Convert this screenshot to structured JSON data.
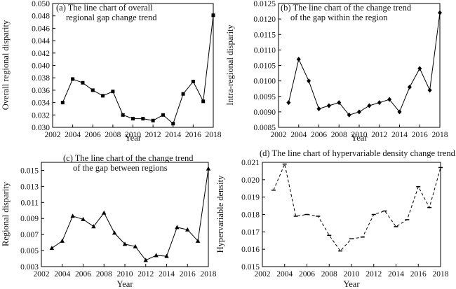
{
  "chart_data": [
    {
      "type": "line",
      "title_lines": [
        "(a) The line chart of overall",
        "regional gap change trend"
      ],
      "xlabel": "Year",
      "ylabel": "Overall regional disparity",
      "xlim": [
        2002,
        2018
      ],
      "xticks": [
        "2002",
        "2004",
        "2006",
        "2008",
        "2010",
        "2012",
        "2014",
        "2016",
        "2018"
      ],
      "ylim": [
        0.03,
        0.05
      ],
      "yticks": [
        "0.030",
        "0.032",
        "0.034",
        "0.036",
        "0.038",
        "0.040",
        "0.042",
        "0.044",
        "0.046",
        "0.048",
        "0.050"
      ],
      "marker": "square",
      "dashed": false,
      "x": [
        2003,
        2004,
        2005,
        2006,
        2007,
        2008,
        2009,
        2010,
        2011,
        2012,
        2013,
        2014,
        2015,
        2016,
        2017,
        2018
      ],
      "values": [
        0.034,
        0.0378,
        0.0372,
        0.036,
        0.0351,
        0.0358,
        0.032,
        0.0314,
        0.0314,
        0.0311,
        0.032,
        0.0306,
        0.0354,
        0.0374,
        0.0342,
        0.0481
      ]
    },
    {
      "type": "line",
      "title_lines": [
        "(b) The line chart of the change trend",
        "of the gap within the region"
      ],
      "xlabel": "Year",
      "ylabel": "Intra-regional disparity",
      "xlim": [
        2002,
        2018
      ],
      "xticks": [
        "2002",
        "2004",
        "2006",
        "2008",
        "2010",
        "2012",
        "2014",
        "2016",
        "2018"
      ],
      "ylim": [
        0.0085,
        0.0125
      ],
      "yticks": [
        "0.0085",
        "0.0090",
        "0.0095",
        "0.0100",
        "0.0105",
        "0.0110",
        "0.0115",
        "0.0120",
        "0.0125"
      ],
      "marker": "diamond",
      "dashed": false,
      "x": [
        2003,
        2004,
        2005,
        2006,
        2007,
        2008,
        2009,
        2010,
        2011,
        2012,
        2013,
        2014,
        2015,
        2016,
        2017,
        2018
      ],
      "values": [
        0.0093,
        0.0107,
        0.01,
        0.0091,
        0.0092,
        0.0093,
        0.0089,
        0.009,
        0.0092,
        0.0093,
        0.0094,
        0.009,
        0.0098,
        0.0104,
        0.0097,
        0.0122
      ]
    },
    {
      "type": "line",
      "title_lines": [
        "(c) The line chart of the change trend",
        "of the gap between regions"
      ],
      "xlabel": "Year",
      "ylabel": "Regional disparity",
      "xlim": [
        2002,
        2018
      ],
      "xticks": [
        "2002",
        "2004",
        "2006",
        "2008",
        "2010",
        "2012",
        "2014",
        "2016",
        "2018"
      ],
      "ylim": [
        0.003,
        0.016
      ],
      "yticks": [
        "0.003",
        "0.005",
        "0.007",
        "0.009",
        "0.011",
        "0.013",
        "0.015"
      ],
      "marker": "triangle",
      "dashed": false,
      "x": [
        2003,
        2004,
        2005,
        2006,
        2007,
        2008,
        2009,
        2010,
        2011,
        2012,
        2013,
        2014,
        2015,
        2016,
        2017,
        2018
      ],
      "values": [
        0.0053,
        0.0062,
        0.0093,
        0.0089,
        0.008,
        0.0097,
        0.0072,
        0.0058,
        0.0055,
        0.0038,
        0.0044,
        0.0043,
        0.0079,
        0.0076,
        0.0062,
        0.0152
      ]
    },
    {
      "type": "line",
      "title_lines": [
        "(d) The line chart of hypervariable density change trend"
      ],
      "xlabel": "Year",
      "ylabel": "Hypervariable density",
      "xlim": [
        2002,
        2018
      ],
      "xticks": [
        "2002",
        "2004",
        "2006",
        "2008",
        "2010",
        "2012",
        "2014",
        "2016",
        "2018"
      ],
      "ylim": [
        0.015,
        0.021
      ],
      "yticks": [
        "0.015",
        "0.016",
        "0.017",
        "0.018",
        "0.019",
        "0.020",
        "0.021"
      ],
      "marker": "dash",
      "dashed": true,
      "x": [
        2003,
        2004,
        2005,
        2006,
        2007,
        2008,
        2009,
        2010,
        2011,
        2012,
        2013,
        2014,
        2015,
        2016,
        2017,
        2018
      ],
      "values": [
        0.0194,
        0.0209,
        0.0179,
        0.018,
        0.0179,
        0.0168,
        0.0159,
        0.0166,
        0.0167,
        0.018,
        0.0182,
        0.0173,
        0.0177,
        0.0196,
        0.0184,
        0.0207
      ]
    }
  ]
}
